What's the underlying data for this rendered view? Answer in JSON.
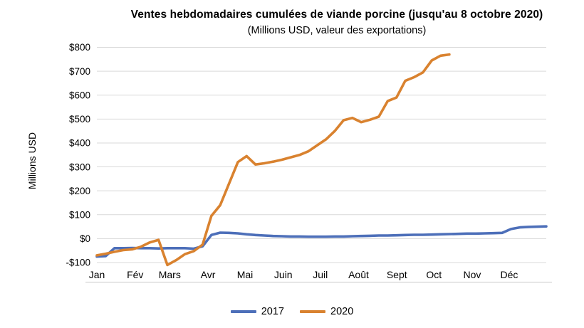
{
  "chart_data": {
    "type": "line",
    "title": "Ventes hebdomadaires cumulées de viande porcine (jusqu'au 8 octobre 2020)",
    "subtitle": "(Millions USD, valeur des exportations)",
    "ylabel": "Millions USD",
    "xlabel": "",
    "grid": true,
    "legend_position": "bottom",
    "ylim": [
      -130,
      800
    ],
    "grid_color": "#D9D9D9",
    "axis_line_color": "#C9C9C9",
    "y_ticks": [
      {
        "label": "$800",
        "value": 800
      },
      {
        "label": "$700",
        "value": 700
      },
      {
        "label": "$600",
        "value": 600
      },
      {
        "label": "$500",
        "value": 500
      },
      {
        "label": "$400",
        "value": 400
      },
      {
        "label": "$300",
        "value": 300
      },
      {
        "label": "$200",
        "value": 200
      },
      {
        "label": "$100",
        "value": 100
      },
      {
        "label": "$0",
        "value": 0
      },
      {
        "label": "-$100",
        "value": -100
      }
    ],
    "x_tick_labels": [
      "Jan",
      "Fév",
      "Mars",
      "Avr",
      "Mai",
      "Juin",
      "Juil",
      "Août",
      "Sept",
      "Oct",
      "Nov",
      "Déc"
    ],
    "x_unit": "semaine (1-52)",
    "series": [
      {
        "name": "2017",
        "color": "#4D6FB9",
        "start_week": 1,
        "values": [
          -75,
          -73,
          -40,
          -40,
          -39,
          -40,
          -40,
          -41,
          -40,
          -40,
          -40,
          -42,
          -32,
          15,
          25,
          24,
          22,
          18,
          15,
          13,
          11,
          10,
          9,
          9,
          8,
          8,
          8,
          9,
          9,
          10,
          11,
          12,
          13,
          13,
          14,
          15,
          16,
          16,
          17,
          18,
          19,
          20,
          21,
          21,
          22,
          23,
          24,
          40,
          47,
          49,
          50,
          51
        ]
      },
      {
        "name": "2020",
        "color": "#D9822F",
        "start_week": 1,
        "values": [
          -70,
          -63,
          -55,
          -48,
          -45,
          -34,
          -16,
          -5,
          -110,
          -90,
          -65,
          -52,
          -25,
          95,
          140,
          230,
          320,
          345,
          310,
          315,
          322,
          330,
          340,
          350,
          365,
          390,
          415,
          450,
          495,
          505,
          487,
          497,
          510,
          575,
          590,
          660,
          675,
          695,
          745,
          765,
          770
        ]
      }
    ]
  }
}
